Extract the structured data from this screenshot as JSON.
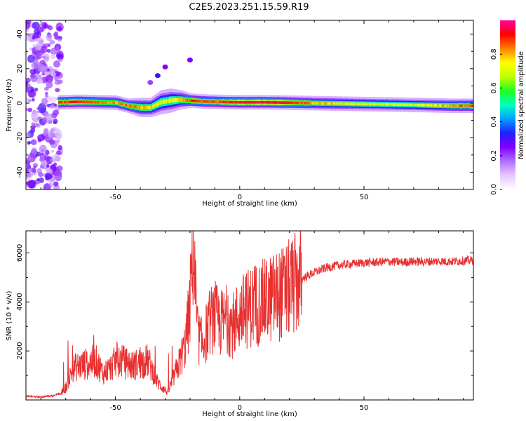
{
  "figure_title": "C2E5.2023.251.15.59.R19",
  "chart_data": [
    {
      "type": "heatmap",
      "xlabel": "Height of straight line (km)",
      "ylabel": "Frequency (Hz)",
      "xlim": [
        -86,
        94
      ],
      "ylim": [
        -50,
        48
      ],
      "xticks": [
        -50,
        0,
        50
      ],
      "yticks": [
        -40,
        -20,
        0,
        20,
        40
      ],
      "colorbar": {
        "label": "Normalized spectral amplitude",
        "range": [
          0,
          1
        ],
        "ticks": [
          "0.0",
          "0.2",
          "0.4",
          "0.6",
          "0.8"
        ],
        "colormap": [
          "#ffffff",
          "#e6c8ff",
          "#b070ff",
          "#8000ff",
          "#2020ff",
          "#00a0ff",
          "#00ffc0",
          "#20ff20",
          "#c0ff00",
          "#ffff00",
          "#ff8000",
          "#ff0000",
          "#ff00a0"
        ]
      },
      "band": {
        "x": [
          -73,
          -65,
          -57,
          -50,
          -45,
          -40,
          -36,
          -32,
          -28,
          -24,
          -20,
          -15,
          -10,
          -5,
          0,
          10,
          20,
          30,
          50,
          70,
          85,
          94
        ],
        "center_hz": [
          0.5,
          0.8,
          0.5,
          0.3,
          -1.5,
          -2.5,
          -2.5,
          0.5,
          1.5,
          2.0,
          1.5,
          1.0,
          0.8,
          0.6,
          0.5,
          0.5,
          0.3,
          0.0,
          -0.5,
          -1.0,
          -1.5,
          -1.5
        ],
        "halfwidth_hz": [
          3,
          3,
          3,
          3,
          3,
          4,
          4,
          5,
          5,
          4,
          3,
          3,
          3,
          3,
          3,
          3,
          3,
          3,
          3,
          3,
          3,
          3
        ],
        "peak_amplitude": [
          0.9,
          0.95,
          0.9,
          0.85,
          0.9,
          0.85,
          0.8,
          0.75,
          0.75,
          0.8,
          0.95,
          0.9,
          0.9,
          0.95,
          1.0,
          1.0,
          0.95,
          0.85,
          0.75,
          0.75,
          0.85,
          0.95
        ]
      },
      "noise_region_x": [
        -86,
        -72
      ],
      "isolated_blobs": [
        {
          "x": -33,
          "hz": 16,
          "amp": 0.3
        },
        {
          "x": -30,
          "hz": 21,
          "amp": 0.25
        },
        {
          "x": -20,
          "hz": 25,
          "amp": 0.25
        },
        {
          "x": -36,
          "hz": 12,
          "amp": 0.2
        }
      ]
    },
    {
      "type": "line",
      "xlabel": "Height of straight line (km)",
      "ylabel": "SNR (10 * v/v)",
      "xlim": [
        -86,
        94
      ],
      "ylim": [
        0,
        6900
      ],
      "xticks": [
        -50,
        0,
        50
      ],
      "yticks": [
        2000,
        4000,
        6000
      ],
      "series": [
        {
          "color": "#e83030",
          "x": [
            -86,
            -80,
            -75,
            -72,
            -70,
            -67,
            -64,
            -61,
            -58,
            -55,
            -52,
            -49,
            -46,
            -43,
            -40,
            -37,
            -35,
            -33,
            -31,
            -29,
            -27,
            -24,
            -22,
            -20,
            -19,
            -17,
            -15,
            -12,
            -10,
            -8,
            -5,
            -3,
            0,
            3,
            6,
            10,
            14,
            18,
            22,
            26,
            30,
            35,
            40,
            45,
            50,
            55,
            60,
            65,
            70,
            75,
            80,
            85,
            90,
            94
          ],
          "y": [
            150,
            120,
            180,
            250,
            500,
            1300,
            1400,
            1500,
            1600,
            1100,
            1300,
            1700,
            1500,
            1400,
            1500,
            1600,
            1200,
            700,
            500,
            300,
            800,
            1600,
            2200,
            3800,
            6700,
            2600,
            2300,
            3200,
            3400,
            3100,
            3300,
            3000,
            3500,
            3700,
            3900,
            4000,
            4200,
            4400,
            4700,
            5000,
            5200,
            5400,
            5500,
            5550,
            5600,
            5620,
            5650,
            5620,
            5650,
            5640,
            5660,
            5650,
            5680,
            5700
          ]
        }
      ]
    }
  ]
}
